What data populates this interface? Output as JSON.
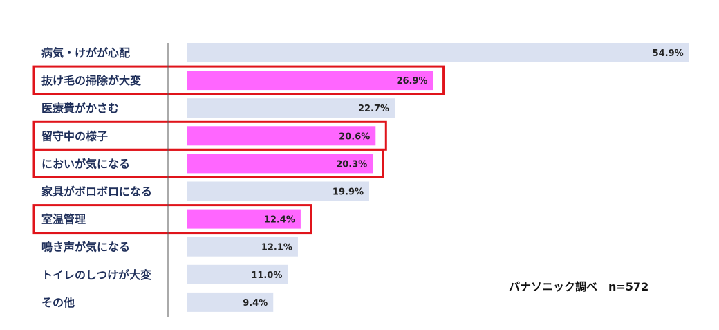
{
  "chart_data": {
    "type": "bar",
    "orientation": "horizontal",
    "categories": [
      "病気・けがが心配",
      "抜け毛の掃除が大変",
      "医療費がかさむ",
      "留守中の様子",
      "においが気になる",
      "家具がボロボロになる",
      "室温管理",
      "鳴き声が気になる",
      "トイレのしつけが大変",
      "その他"
    ],
    "values": [
      54.9,
      26.9,
      22.7,
      20.6,
      20.3,
      19.9,
      12.4,
      12.1,
      11.0,
      9.4
    ],
    "value_labels": [
      "54.9%",
      "26.9%",
      "22.7%",
      "20.6%",
      "20.3%",
      "19.9%",
      "12.4%",
      "12.1%",
      "11.0%",
      "9.4%"
    ],
    "highlighted": [
      false,
      true,
      false,
      true,
      true,
      false,
      true,
      false,
      false,
      false
    ],
    "xlim": [
      0,
      55
    ],
    "grid": false,
    "legend": "none",
    "annotation": "パナソニック調べ　n=572"
  },
  "colors": {
    "bar_default": "#dae1f1",
    "bar_highlight": "#ff66ff",
    "highlight_box": "#e0141b",
    "axis": "#555555",
    "category_text": "#1f2f5a"
  }
}
